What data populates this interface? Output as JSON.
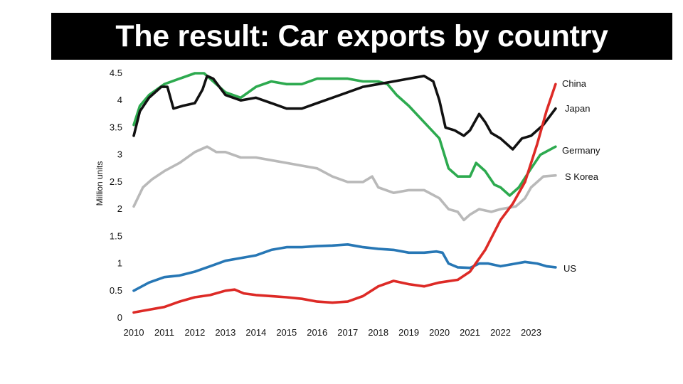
{
  "slide": {
    "title": "The result: Car exports by country"
  },
  "chart_data": {
    "type": "line",
    "title": "The result: Car exports by country",
    "xlabel": "",
    "ylabel": "Million units",
    "xlim": [
      2010,
      2023.85
    ],
    "ylim": [
      0,
      4.5
    ],
    "x_ticks": [
      "2010",
      "2011",
      "2012",
      "2013",
      "2014",
      "2015",
      "2016",
      "2017",
      "2018",
      "2019",
      "2020",
      "2021",
      "2022",
      "2023"
    ],
    "x_tick_values": [
      2010,
      2011,
      2012,
      2013,
      2014,
      2015,
      2016,
      2017,
      2018,
      2019,
      2020,
      2021,
      2022,
      2023
    ],
    "y_ticks": [
      "0",
      "0.5",
      "1",
      "1.5",
      "2",
      "2.5",
      "3",
      "3.5",
      "4",
      "4.5"
    ],
    "y_tick_values": [
      0,
      0.5,
      1,
      1.5,
      2,
      2.5,
      3,
      3.5,
      4,
      4.5
    ],
    "legend_placement": "inline at right end of each line",
    "series": [
      {
        "name": "China",
        "color": "#dd2a26",
        "points": [
          [
            2010,
            0.1
          ],
          [
            2010.5,
            0.15
          ],
          [
            2011,
            0.2
          ],
          [
            2011.5,
            0.3
          ],
          [
            2012,
            0.38
          ],
          [
            2012.5,
            0.42
          ],
          [
            2013,
            0.5
          ],
          [
            2013.3,
            0.52
          ],
          [
            2013.6,
            0.45
          ],
          [
            2014,
            0.42
          ],
          [
            2014.5,
            0.4
          ],
          [
            2015,
            0.38
          ],
          [
            2015.5,
            0.35
          ],
          [
            2016,
            0.3
          ],
          [
            2016.5,
            0.28
          ],
          [
            2017,
            0.3
          ],
          [
            2017.5,
            0.4
          ],
          [
            2018,
            0.58
          ],
          [
            2018.5,
            0.68
          ],
          [
            2019,
            0.62
          ],
          [
            2019.5,
            0.58
          ],
          [
            2020,
            0.65
          ],
          [
            2020.6,
            0.7
          ],
          [
            2021,
            0.85
          ],
          [
            2021.5,
            1.25
          ],
          [
            2022,
            1.8
          ],
          [
            2022.4,
            2.1
          ],
          [
            2022.8,
            2.5
          ],
          [
            2023.2,
            3.2
          ],
          [
            2023.5,
            3.8
          ],
          [
            2023.8,
            4.3
          ]
        ]
      },
      {
        "name": "Japan",
        "color": "#111111",
        "points": [
          [
            2010,
            3.35
          ],
          [
            2010.2,
            3.8
          ],
          [
            2010.5,
            4.05
          ],
          [
            2010.9,
            4.25
          ],
          [
            2011.1,
            4.25
          ],
          [
            2011.3,
            3.85
          ],
          [
            2011.6,
            3.9
          ],
          [
            2012,
            3.95
          ],
          [
            2012.25,
            4.2
          ],
          [
            2012.4,
            4.45
          ],
          [
            2012.6,
            4.4
          ],
          [
            2013,
            4.1
          ],
          [
            2013.5,
            4.0
          ],
          [
            2014,
            4.05
          ],
          [
            2014.5,
            3.95
          ],
          [
            2015,
            3.85
          ],
          [
            2015.5,
            3.85
          ],
          [
            2016,
            3.95
          ],
          [
            2016.5,
            4.05
          ],
          [
            2017,
            4.15
          ],
          [
            2017.5,
            4.25
          ],
          [
            2018,
            4.3
          ],
          [
            2018.5,
            4.35
          ],
          [
            2019,
            4.4
          ],
          [
            2019.5,
            4.45
          ],
          [
            2019.8,
            4.35
          ],
          [
            2020,
            4.0
          ],
          [
            2020.2,
            3.5
          ],
          [
            2020.5,
            3.45
          ],
          [
            2020.8,
            3.35
          ],
          [
            2021,
            3.45
          ],
          [
            2021.3,
            3.75
          ],
          [
            2021.5,
            3.6
          ],
          [
            2021.7,
            3.4
          ],
          [
            2022,
            3.3
          ],
          [
            2022.4,
            3.1
          ],
          [
            2022.7,
            3.3
          ],
          [
            2023,
            3.35
          ],
          [
            2023.4,
            3.55
          ],
          [
            2023.8,
            3.85
          ]
        ]
      },
      {
        "name": "Germany",
        "color": "#2daa4f",
        "points": [
          [
            2010,
            3.55
          ],
          [
            2010.2,
            3.9
          ],
          [
            2010.5,
            4.1
          ],
          [
            2011,
            4.3
          ],
          [
            2011.5,
            4.4
          ],
          [
            2012,
            4.5
          ],
          [
            2012.3,
            4.5
          ],
          [
            2012.6,
            4.35
          ],
          [
            2013,
            4.15
          ],
          [
            2013.5,
            4.05
          ],
          [
            2014,
            4.25
          ],
          [
            2014.5,
            4.35
          ],
          [
            2015,
            4.3
          ],
          [
            2015.5,
            4.3
          ],
          [
            2016,
            4.4
          ],
          [
            2016.5,
            4.4
          ],
          [
            2017,
            4.4
          ],
          [
            2017.5,
            4.35
          ],
          [
            2018,
            4.35
          ],
          [
            2018.3,
            4.3
          ],
          [
            2018.6,
            4.1
          ],
          [
            2019,
            3.9
          ],
          [
            2019.5,
            3.6
          ],
          [
            2020,
            3.3
          ],
          [
            2020.3,
            2.75
          ],
          [
            2020.6,
            2.6
          ],
          [
            2021,
            2.6
          ],
          [
            2021.2,
            2.85
          ],
          [
            2021.5,
            2.7
          ],
          [
            2021.8,
            2.45
          ],
          [
            2022,
            2.4
          ],
          [
            2022.3,
            2.25
          ],
          [
            2022.6,
            2.4
          ],
          [
            2023,
            2.75
          ],
          [
            2023.3,
            3.0
          ],
          [
            2023.8,
            3.15
          ]
        ]
      },
      {
        "name": "S Korea",
        "color": "#b9b9b9",
        "points": [
          [
            2010,
            2.05
          ],
          [
            2010.3,
            2.4
          ],
          [
            2010.6,
            2.55
          ],
          [
            2011,
            2.7
          ],
          [
            2011.5,
            2.85
          ],
          [
            2012,
            3.05
          ],
          [
            2012.4,
            3.15
          ],
          [
            2012.7,
            3.05
          ],
          [
            2013,
            3.05
          ],
          [
            2013.5,
            2.95
          ],
          [
            2014,
            2.95
          ],
          [
            2014.5,
            2.9
          ],
          [
            2015,
            2.85
          ],
          [
            2015.5,
            2.8
          ],
          [
            2016,
            2.75
          ],
          [
            2016.5,
            2.6
          ],
          [
            2017,
            2.5
          ],
          [
            2017.5,
            2.5
          ],
          [
            2017.8,
            2.6
          ],
          [
            2018,
            2.4
          ],
          [
            2018.5,
            2.3
          ],
          [
            2019,
            2.35
          ],
          [
            2019.5,
            2.35
          ],
          [
            2020,
            2.2
          ],
          [
            2020.3,
            2.0
          ],
          [
            2020.6,
            1.95
          ],
          [
            2020.8,
            1.8
          ],
          [
            2021,
            1.9
          ],
          [
            2021.3,
            2.0
          ],
          [
            2021.7,
            1.95
          ],
          [
            2022,
            2.0
          ],
          [
            2022.5,
            2.05
          ],
          [
            2022.8,
            2.2
          ],
          [
            2023,
            2.4
          ],
          [
            2023.4,
            2.6
          ],
          [
            2023.8,
            2.62
          ]
        ]
      },
      {
        "name": "US",
        "color": "#2777b5",
        "points": [
          [
            2010,
            0.5
          ],
          [
            2010.5,
            0.65
          ],
          [
            2011,
            0.75
          ],
          [
            2011.5,
            0.78
          ],
          [
            2012,
            0.85
          ],
          [
            2012.5,
            0.95
          ],
          [
            2013,
            1.05
          ],
          [
            2013.5,
            1.1
          ],
          [
            2014,
            1.15
          ],
          [
            2014.5,
            1.25
          ],
          [
            2015,
            1.3
          ],
          [
            2015.5,
            1.3
          ],
          [
            2016,
            1.32
          ],
          [
            2016.5,
            1.33
          ],
          [
            2017,
            1.35
          ],
          [
            2017.5,
            1.3
          ],
          [
            2018,
            1.27
          ],
          [
            2018.5,
            1.25
          ],
          [
            2019,
            1.2
          ],
          [
            2019.5,
            1.2
          ],
          [
            2019.9,
            1.22
          ],
          [
            2020.1,
            1.2
          ],
          [
            2020.3,
            1.0
          ],
          [
            2020.6,
            0.93
          ],
          [
            2021,
            0.92
          ],
          [
            2021.3,
            1.0
          ],
          [
            2021.6,
            1.0
          ],
          [
            2022,
            0.95
          ],
          [
            2022.5,
            1.0
          ],
          [
            2022.8,
            1.03
          ],
          [
            2023.2,
            1.0
          ],
          [
            2023.5,
            0.95
          ],
          [
            2023.8,
            0.93
          ]
        ]
      }
    ]
  }
}
